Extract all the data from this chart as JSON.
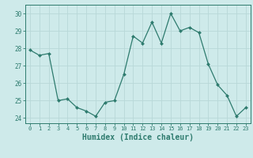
{
  "x": [
    0,
    1,
    2,
    3,
    4,
    5,
    6,
    7,
    8,
    9,
    10,
    11,
    12,
    13,
    14,
    15,
    16,
    17,
    18,
    19,
    20,
    21,
    22,
    23
  ],
  "y": [
    27.9,
    27.6,
    27.7,
    25.0,
    25.1,
    24.6,
    24.4,
    24.1,
    24.9,
    25.0,
    26.5,
    28.7,
    28.3,
    29.5,
    28.3,
    30.0,
    29.0,
    29.2,
    28.9,
    27.1,
    25.9,
    25.3,
    24.1,
    24.6
  ],
  "line_color": "#2e7b6e",
  "marker": "D",
  "marker_size": 2.0,
  "bg_color": "#ceeaea",
  "grid_color": "#b8d8d8",
  "tick_color": "#2e7b6e",
  "xlabel": "Humidex (Indice chaleur)",
  "xlabel_fontsize": 7,
  "ylim": [
    23.7,
    30.5
  ],
  "yticks": [
    24,
    25,
    26,
    27,
    28,
    29,
    30
  ],
  "xlim": [
    -0.5,
    23.5
  ],
  "spine_color": "#2e7b6e"
}
